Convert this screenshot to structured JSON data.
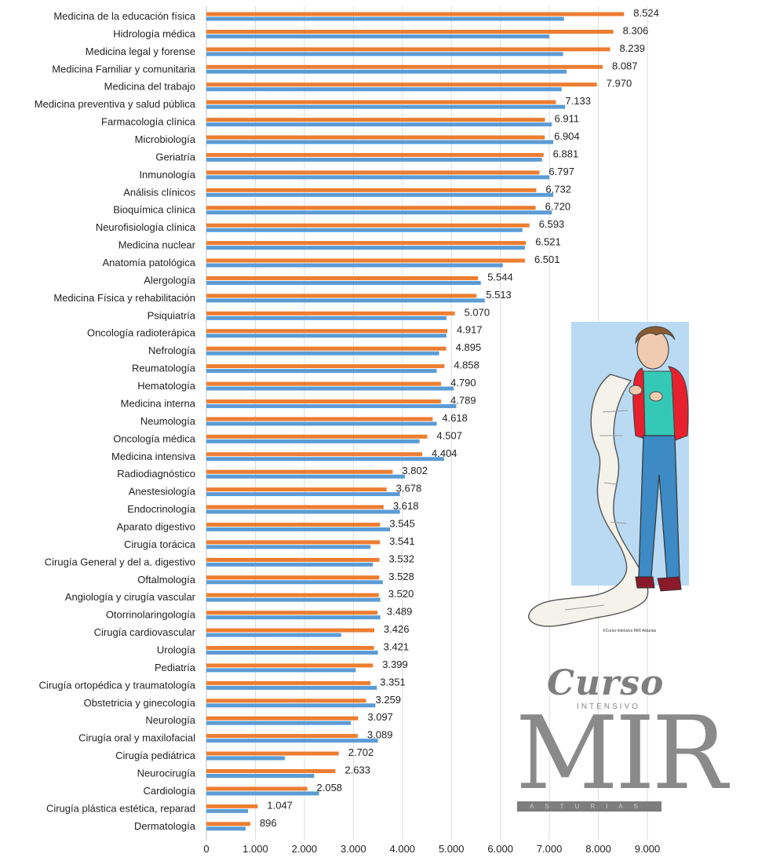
{
  "chart_data": {
    "type": "bar",
    "orientation": "horizontal",
    "title": "",
    "xlabel": "",
    "ylabel": "",
    "xlim": [
      0,
      9000
    ],
    "x_ticks": [
      "0",
      "1.000",
      "2.000",
      "3.000",
      "4.000",
      "5.000",
      "6.000",
      "7.000",
      "8.000",
      "9.000"
    ],
    "grid": "vertical",
    "legend": "none",
    "categories": [
      "Medicina de la educación física",
      "Hidrología médica",
      "Medicina legal y forense",
      "Medicina Familiar y comunitaria",
      "Medicina del trabajo",
      "Medicina preventiva y salud pública",
      "Farmacología clínica",
      "Microbiología",
      "Geriatría",
      "Inmunología",
      "Análisis clínicos",
      "Bioquímica clínica",
      "Neurofisiología clínica",
      "Medicina nuclear",
      "Anatomía patológica",
      "Alergología",
      "Medicina Física y rehabilitación",
      "Psiquiatría",
      "Oncología radioterápica",
      "Nefrología",
      "Reumatología",
      "Hematología",
      "Medicina interna",
      "Neumología",
      "Oncología médica",
      "Medicina intensiva",
      "Radiodiagnóstico",
      "Anestesiología",
      "Endocrinología",
      "Aparato digestivo",
      "Cirugía torácica",
      "Cirugía General y del a. digestivo",
      "Oftalmología",
      "Angiología y cirugía vascular",
      "Otorrinolaringología",
      "Cirugía cardiovascular",
      "Urología",
      "Pediatría",
      "Cirugía ortopédica y traumatología",
      "Obstetricia y ginecología",
      "Neurología",
      "Cirugía oral y maxilofacial",
      "Cirugía pediátrica",
      "Neurocirugía",
      "Cardiología",
      "Cirugía plástica estética, reparad",
      "Dermatología"
    ],
    "series": [
      {
        "color": "#ed7d31",
        "values": [
          8524,
          8306,
          8239,
          8087,
          7970,
          7133,
          6911,
          6904,
          6881,
          6797,
          6732,
          6720,
          6593,
          6521,
          6501,
          5544,
          5513,
          5070,
          4917,
          4895,
          4858,
          4790,
          4789,
          4618,
          4507,
          4404,
          3802,
          3678,
          3618,
          3545,
          3541,
          3532,
          3528,
          3520,
          3489,
          3426,
          3421,
          3399,
          3351,
          3259,
          3097,
          3089,
          2702,
          2633,
          2058,
          1047,
          896
        ],
        "data_labels": [
          "8.524",
          "8.306",
          "8.239",
          "8.087",
          "7.970",
          "7.133",
          "6.911",
          "6.904",
          "6.881",
          "6.797",
          "6.732",
          "6.720",
          "6.593",
          "6.521",
          "6.501",
          "5.544",
          "5.513",
          "5.070",
          "4.917",
          "4.895",
          "4.858",
          "4.790",
          "4.789",
          "4.618",
          "4.507",
          "4.404",
          "3.802",
          "3.678",
          "3.618",
          "3.545",
          "3.541",
          "3.532",
          "3.528",
          "3.520",
          "3.489",
          "3.426",
          "3.421",
          "3.399",
          "3.351",
          "3.259",
          "3.097",
          "3.089",
          "2.702",
          "2.633",
          "2.058",
          "1.047",
          "896"
        ]
      },
      {
        "color": "#5b9bd5",
        "values": [
          7300,
          7000,
          7280,
          7350,
          7250,
          7320,
          7050,
          7080,
          6850,
          7000,
          7080,
          7050,
          6450,
          6500,
          6050,
          5600,
          5680,
          4900,
          4900,
          4750,
          4700,
          5050,
          5100,
          4700,
          4350,
          4850,
          4050,
          3950,
          3950,
          3750,
          3350,
          3400,
          3600,
          3550,
          3550,
          2750,
          3500,
          3050,
          3480,
          3450,
          2950,
          3500,
          1600,
          2200,
          2300,
          850,
          800
        ]
      }
    ]
  },
  "illustration": {
    "name": "doctor-reading-long-list-icon",
    "credit": "©Curso Intensivo MIR Asturias"
  },
  "logo": {
    "line1": "Curso",
    "line2": "INTENSIVO",
    "line3": "MIR",
    "line4": "ASTURIAS"
  },
  "colors": {
    "orange": "#ed7d31",
    "blue": "#5b9bd5",
    "illus_bg": "#b9daf2",
    "jacket": "#e8202e",
    "jeans": "#3d8ac4",
    "shirt": "#34c9b6"
  }
}
